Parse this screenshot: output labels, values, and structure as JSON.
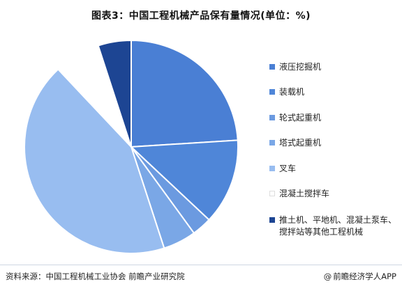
{
  "title": "图表3：中国工程机械产品保有量情况(单位：%)",
  "source": "资料来源：中国工程机械工业协会 前瞻产业研究院",
  "brand": "前瞻经济学人APP",
  "brand_at": "@",
  "chart_data": {
    "type": "pie",
    "title": "图表3：中国工程机械产品保有量情况(单位：%)",
    "start_angle_deg": 0,
    "direction": "clockwise",
    "legend_position": "right",
    "slices": [
      {
        "label": "液压挖掘机",
        "value": 24,
        "color": "#4a7fd4"
      },
      {
        "label": "装载机",
        "value": 13,
        "color": "#4f86d8"
      },
      {
        "label": "轮式起重机",
        "value": 3,
        "color": "#6b9ae0"
      },
      {
        "label": "塔式起重机",
        "value": 5,
        "color": "#7aa7e6"
      },
      {
        "label": "叉车",
        "value": 43,
        "color": "#98bdf0"
      },
      {
        "label": "混凝土搅拌车",
        "value": 7,
        "color": "#ffffff"
      },
      {
        "label": "推土机、平地机、混凝土泵车、搅拌站等其他工程机械",
        "value": 5,
        "color": "#1d4593"
      }
    ]
  }
}
